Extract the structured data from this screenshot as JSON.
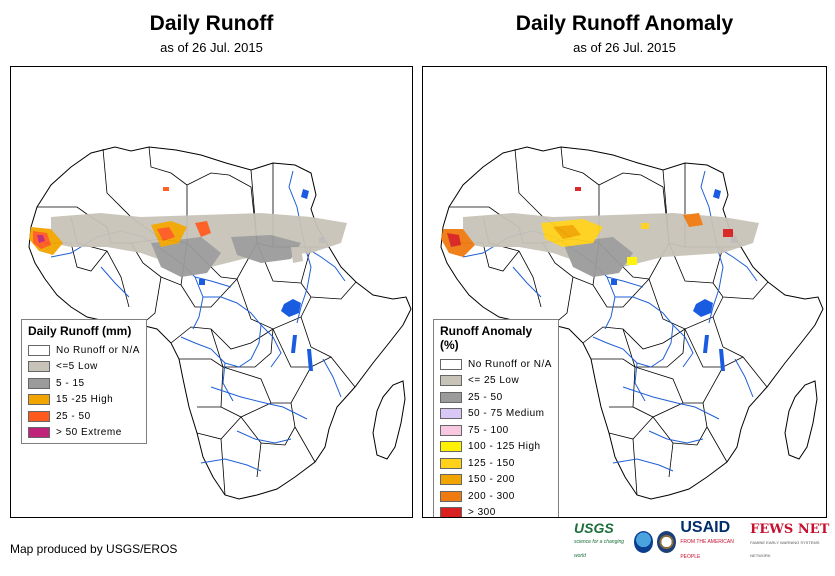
{
  "left_panel": {
    "title": "Daily Runoff",
    "subtitle": "as of 26 Jul. 2015",
    "legend": {
      "title": "Daily Runoff (mm)",
      "items": [
        {
          "label": "No Runoff or N/A",
          "color": "#ffffff"
        },
        {
          "label": "<=5 Low",
          "color": "#c8c3b9"
        },
        {
          "label": "5 - 15",
          "color": "#9b9b9b"
        },
        {
          "label": "15 -25 High",
          "color": "#f2a500"
        },
        {
          "label": "25 - 50",
          "color": "#ff5a1e"
        },
        {
          "label": "> 50 Extreme",
          "color": "#c0247a"
        }
      ]
    }
  },
  "right_panel": {
    "title": "Daily Runoff Anomaly",
    "subtitle": "as of 26 Jul. 2015",
    "legend": {
      "title": "Runoff Anomaly (%)",
      "items": [
        {
          "label": "No Runoff or N/A",
          "color": "#ffffff"
        },
        {
          "label": "<= 25 Low",
          "color": "#c8c3b9"
        },
        {
          "label": "25 - 50",
          "color": "#9b9b9b"
        },
        {
          "label": "50 - 75 Medium",
          "color": "#d9c8f5"
        },
        {
          "label": "75 - 100",
          "color": "#f7c8e0"
        },
        {
          "label": "100 - 125 High",
          "color": "#fff200"
        },
        {
          "label": "125 - 150",
          "color": "#ffd11a"
        },
        {
          "label": "150 - 200",
          "color": "#f2a500"
        },
        {
          "label": "200 - 300",
          "color": "#ef7a10"
        },
        {
          "label": "> 300",
          "color": "#d92020"
        }
      ]
    }
  },
  "footer": {
    "credit": "Map produced by USGS/EROS",
    "logos": {
      "usgs": "USGS",
      "usgs_tagline": "science for a changing world",
      "usaid": "USAID",
      "usaid_tagline": "FROM THE AMERICAN PEOPLE",
      "fews": "FEWS NET",
      "fews_tagline": "FAMINE EARLY WARNING SYSTEMS NETWORK"
    }
  },
  "colors": {
    "river": "#1f5fd6",
    "border": "#000000",
    "water": "#1a5ce0"
  }
}
